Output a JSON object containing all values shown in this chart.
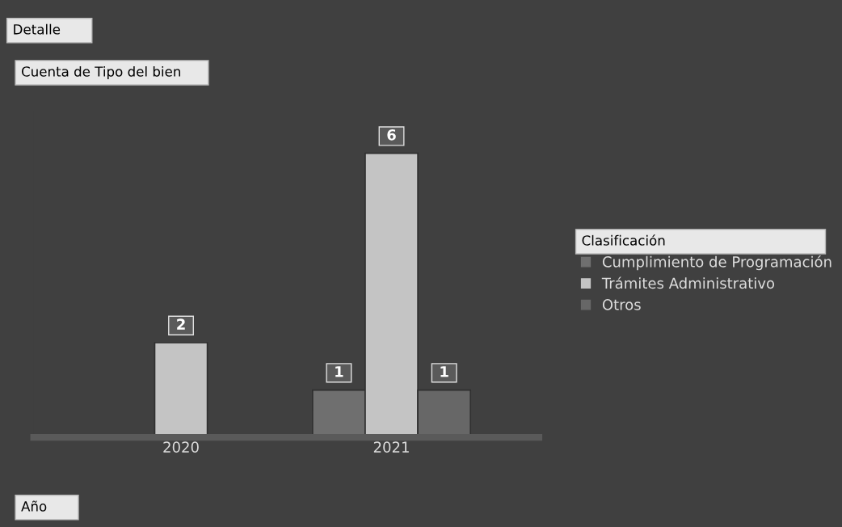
{
  "chart_data": {
    "type": "bar",
    "title": "Detalle",
    "annotations": [
      "Cuenta de Tipo del bien"
    ],
    "xlabel": "Año",
    "legend_title": "Clasificación",
    "categories": [
      "2020",
      "2021"
    ],
    "series": [
      {
        "name": "Cumplimiento de Programación",
        "color": "#6f6f6f",
        "values": [
          null,
          1
        ]
      },
      {
        "name": "Trámites Administrativo",
        "color": "#c4c4c4",
        "values": [
          2,
          6
        ]
      },
      {
        "name": "Otros",
        "color": "#676767",
        "values": [
          null,
          1
        ]
      }
    ],
    "data_labels": true,
    "tick_labels": "x",
    "grid": false,
    "legend": "right"
  }
}
